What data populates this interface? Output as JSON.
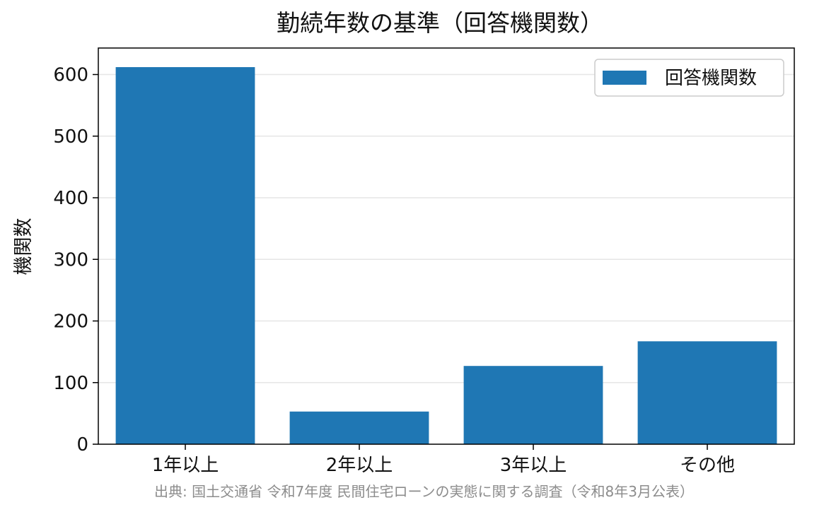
{
  "chart_data": {
    "type": "bar",
    "title": "勤続年数の基準（回答機関数）",
    "xlabel": "",
    "ylabel": "機関数",
    "categories": [
      "1年以上",
      "2年以上",
      "3年以上",
      "その他"
    ],
    "series": [
      {
        "name": "回答機関数",
        "values": [
          612,
          53,
          127,
          167
        ],
        "color": "#1f77b4"
      }
    ],
    "ylim": [
      0,
      643
    ],
    "yticks": [
      0,
      100,
      200,
      300,
      400,
      500,
      600
    ],
    "grid": {
      "y": true,
      "x": false
    },
    "legend_position": "top-right"
  },
  "source_note": "出典: 国土交通省 令和7年度 民間住宅ローンの実態に関する調査（令和8年3月公表）"
}
